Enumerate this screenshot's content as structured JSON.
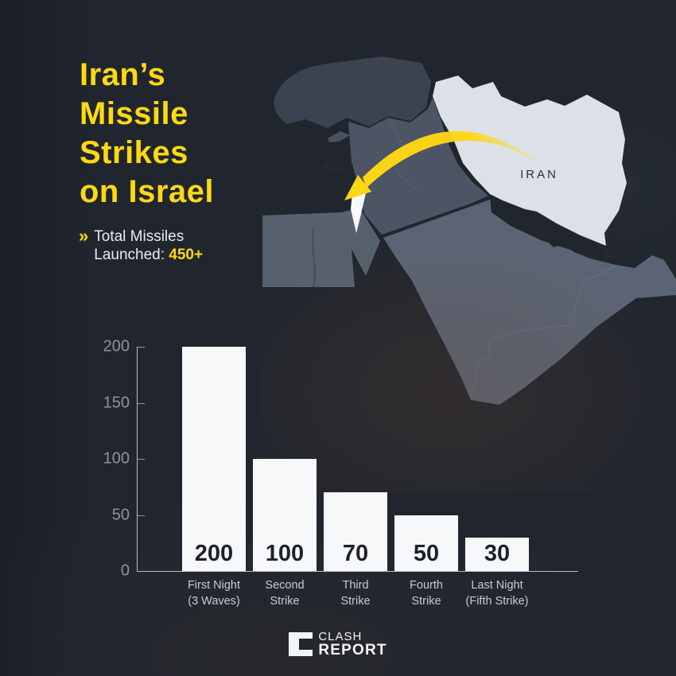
{
  "title": {
    "full": "Iran's Missile Strikes on Israel",
    "lines": [
      "Iran’s",
      "Missile",
      "Strikes",
      "on Israel"
    ]
  },
  "subtitle": {
    "chevron": "»",
    "line1": "Total Missiles",
    "line2_prefix": "Launched: ",
    "line2_value": "450+"
  },
  "map": {
    "labels": {
      "israel": "ISRAEL",
      "iran": "IRAN"
    },
    "arrow": {
      "from": "IRAN",
      "to": "ISRAEL"
    }
  },
  "chart_data": {
    "type": "bar",
    "title": "",
    "categories": [
      "First Night (3 Waves)",
      "Second Strike",
      "Third Strike",
      "Fourth Strike",
      "Last Night (Fifth Strike)"
    ],
    "category_lines": [
      [
        "First Night",
        "(3 Waves)"
      ],
      [
        "Second",
        "Strike"
      ],
      [
        "Third",
        "Strike"
      ],
      [
        "Fourth",
        "Strike"
      ],
      [
        "Last Night",
        "(Fifth Strike)"
      ]
    ],
    "values": [
      200,
      100,
      70,
      50,
      30
    ],
    "yticks": [
      0,
      50,
      100,
      150,
      200
    ],
    "ylim": [
      0,
      200
    ],
    "xlabel": "",
    "ylabel": "",
    "grid": false,
    "legend": false,
    "bar_color": "#f7f8fa",
    "value_label_position": "inside-bottom"
  },
  "footer": {
    "brand_top": "CLASH",
    "brand_bottom": "REPORT"
  },
  "colors": {
    "background": "#21262e",
    "accent_yellow": "#ffd914",
    "bar_fill": "#f7f8fa",
    "axis_text": "#8e949d",
    "category_text": "#c7ccd3",
    "map_iran_fill": "#dce1e8",
    "map_israel_fill": "#f7f9fa",
    "map_levant_fill": "#4d5565",
    "map_saudi_fill": "#5b6474",
    "map_turkey_fill": "#3b4350",
    "map_egypt_fill": "#57616e",
    "map_label_text": "#262c36"
  }
}
